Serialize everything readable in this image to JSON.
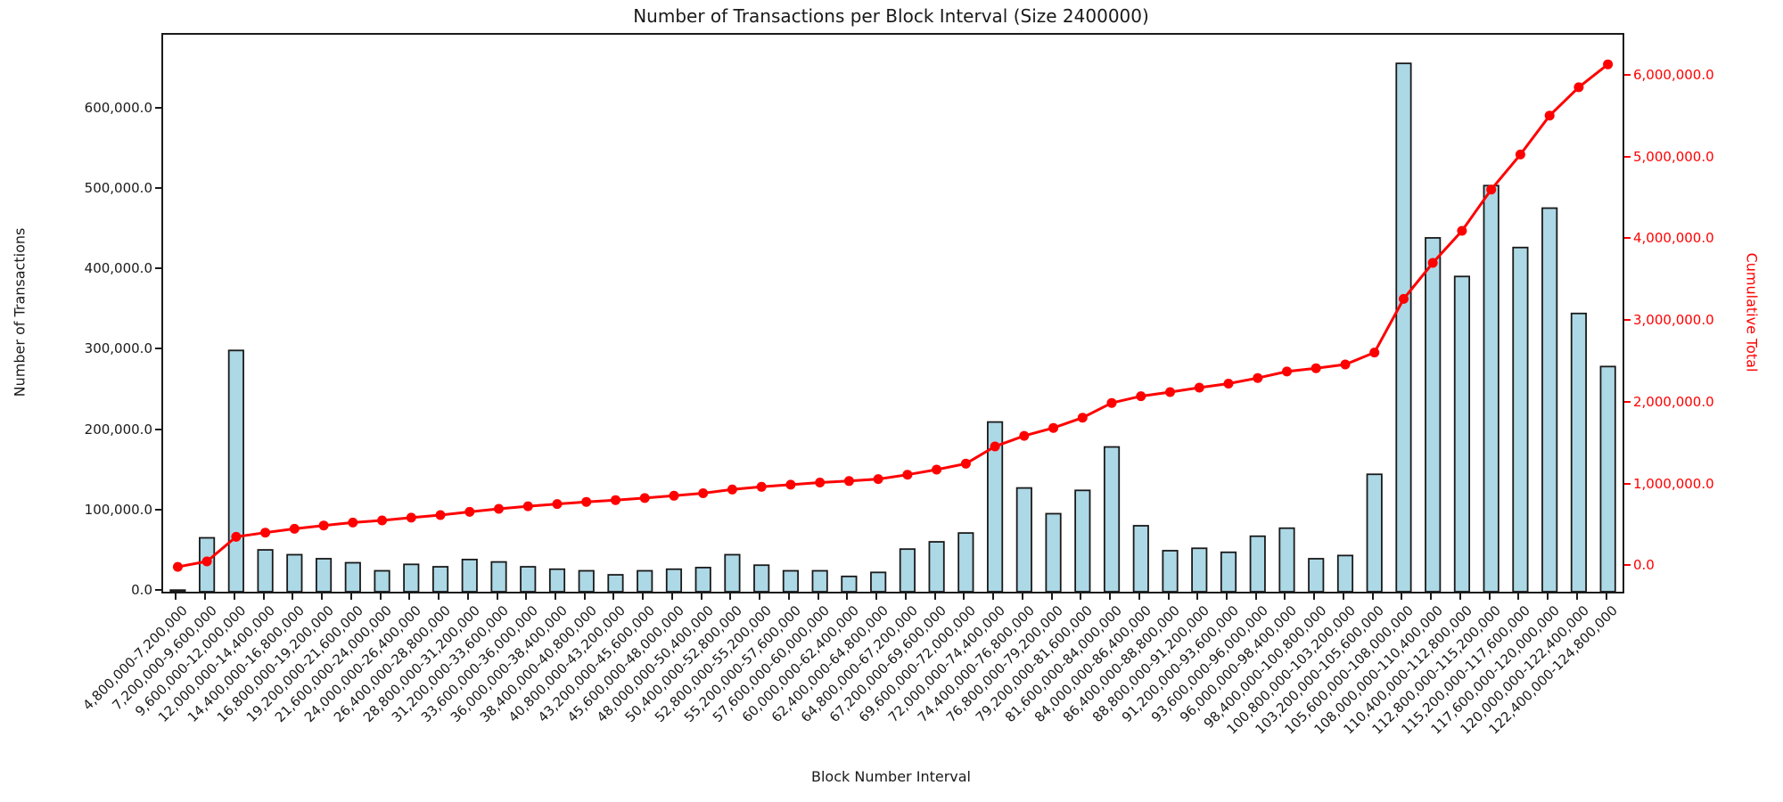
{
  "title": "Number of Transactions per Block Interval (Size 2400000)",
  "x_axis_label": "Block Number Interval",
  "colors": {
    "bar_fill": "#ADD8E6",
    "bar_edge": "#1a1a1a",
    "line": "#ff0000",
    "right_axis_text": "#ff0000",
    "axis_text": "#1a1a1a",
    "background": "#ffffff"
  },
  "chart_data": {
    "type": "bar",
    "note": "bar series on left axis plus cumulative line with circle markers on right axis, no gridlines, no legend",
    "categories": [
      "4,800,000-7,200,000",
      "7,200,000-9,600,000",
      "9,600,000-12,000,000",
      "12,000,000-14,400,000",
      "14,400,000-16,800,000",
      "16,800,000-19,200,000",
      "19,200,000-21,600,000",
      "21,600,000-24,000,000",
      "24,000,000-26,400,000",
      "26,400,000-28,800,000",
      "28,800,000-31,200,000",
      "31,200,000-33,600,000",
      "33,600,000-36,000,000",
      "36,000,000-38,400,000",
      "38,400,000-40,800,000",
      "40,800,000-43,200,000",
      "43,200,000-45,600,000",
      "45,600,000-48,000,000",
      "48,000,000-50,400,000",
      "50,400,000-52,800,000",
      "52,800,000-55,200,000",
      "55,200,000-57,600,000",
      "57,600,000-60,000,000",
      "60,000,000-62,400,000",
      "62,400,000-64,800,000",
      "64,800,000-67,200,000",
      "67,200,000-69,600,000",
      "69,600,000-72,000,000",
      "72,000,000-74,400,000",
      "74,400,000-76,800,000",
      "76,800,000-79,200,000",
      "79,200,000-81,600,000",
      "81,600,000-84,000,000",
      "84,000,000-86,400,000",
      "86,400,000-88,800,000",
      "88,800,000-91,200,000",
      "91,200,000-93,600,000",
      "93,600,000-96,000,000",
      "96,000,000-98,400,000",
      "98,400,000-100,800,000",
      "100,800,000-103,200,000",
      "103,200,000-105,600,000",
      "105,600,000-108,000,000",
      "108,000,000-110,400,000",
      "110,400,000-112,800,000",
      "112,800,000-115,200,000",
      "115,200,000-117,600,000",
      "117,600,000-120,000,000",
      "120,000,000-122,400,000",
      "122,400,000-124,800,000"
    ],
    "series": [
      {
        "name": "Number of Transactions",
        "type": "bar",
        "axis": "left",
        "values": [
          2000,
          67000,
          300000,
          52000,
          46000,
          41000,
          36000,
          26000,
          34000,
          31000,
          40000,
          37000,
          31000,
          28000,
          26000,
          21000,
          26000,
          28000,
          30000,
          46000,
          33000,
          26000,
          26000,
          19000,
          24000,
          53000,
          62000,
          73000,
          211000,
          129000,
          97000,
          126000,
          180000,
          82000,
          51000,
          54000,
          49000,
          69000,
          79000,
          41000,
          45000,
          146000,
          657000,
          440000,
          392000,
          505000,
          428000,
          477000,
          346000,
          280000
        ]
      },
      {
        "name": "Cumulative Total",
        "type": "line",
        "axis": "right",
        "values": [
          2000,
          69000,
          369000,
          421000,
          467000,
          508000,
          544000,
          570000,
          604000,
          635000,
          675000,
          712000,
          743000,
          771000,
          797000,
          818000,
          844000,
          872000,
          902000,
          948000,
          981000,
          1007000,
          1033000,
          1052000,
          1076000,
          1129000,
          1191000,
          1264000,
          1475000,
          1604000,
          1701000,
          1827000,
          2007000,
          2089000,
          2140000,
          2194000,
          2243000,
          2312000,
          2391000,
          2432000,
          2477000,
          2623000,
          3280000,
          3720000,
          4112000,
          4617000,
          5045000,
          5522000,
          5868000,
          6148000
        ]
      }
    ],
    "left_axis": {
      "label": "Number of Transactions",
      "tick_values": [
        0,
        100000,
        200000,
        300000,
        400000,
        500000,
        600000
      ],
      "tick_labels": [
        "0.0",
        "100,000.0",
        "200,000.0",
        "300,000.0",
        "400,000.0",
        "500,000.0",
        "600,000.0"
      ],
      "min": 0,
      "max": 692600
    },
    "right_axis": {
      "label": "Cumulative Total",
      "tick_values": [
        0,
        1000000,
        2000000,
        3000000,
        4000000,
        5000000,
        6000000
      ],
      "tick_labels": [
        "0.0",
        "1,000,000.0",
        "2,000,000.0",
        "3,000,000.0",
        "4,000,000.0",
        "5,000,000.0",
        "6,000,000.0"
      ],
      "min": -302100,
      "max": 6510400
    },
    "xlabel": "Block Number Interval",
    "grid": false,
    "legend": "none"
  }
}
